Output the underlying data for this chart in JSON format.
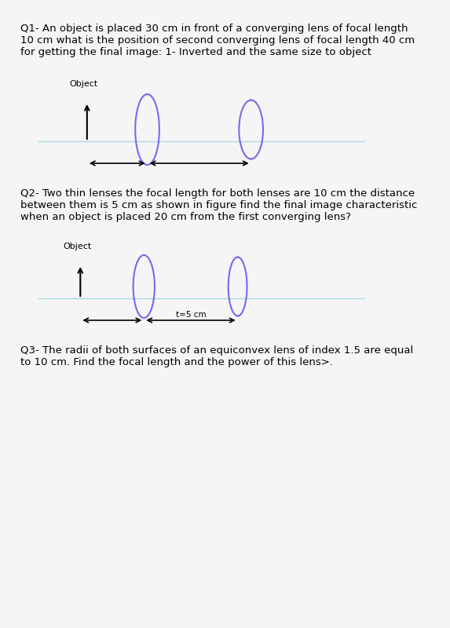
{
  "bg_color": "#f5f5f5",
  "q1_text": "Q1- An object is placed 30 cm in front of a converging lens of focal length\n10 cm what is the position of second converging lens of focal length 40 cm\nfor getting the final image: 1- Inverted and the same size to object",
  "q2_text": "Q2- Two thin lenses the focal length for both lenses are 10 cm the distance\nbetween them is 5 cm as shown in figure find the final image characteristic\nwhen an object is placed 20 cm from the first converging lens?",
  "q3_text": "Q3- The radii of both surfaces of an equiconvex lens of index 1.5 are equal\nto 10 cm. Find the focal length and the power of this lens>.",
  "object_label": "Object",
  "t_label": "t=5 cm",
  "lens_color": "#7b68ee",
  "arrow_color": "#000000",
  "axis_color": "#add8e6",
  "text_color": "#000000",
  "font_size_q": 9.5,
  "font_size_label": 8
}
